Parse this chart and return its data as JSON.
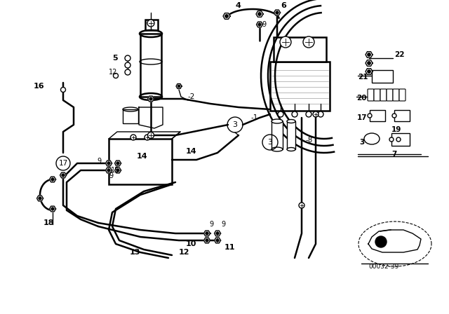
{
  "bg_color": "#ffffff",
  "line_color": "#000000",
  "diagram_code": "00032-39",
  "lw_main": 1.8,
  "lw_thin": 1.0
}
